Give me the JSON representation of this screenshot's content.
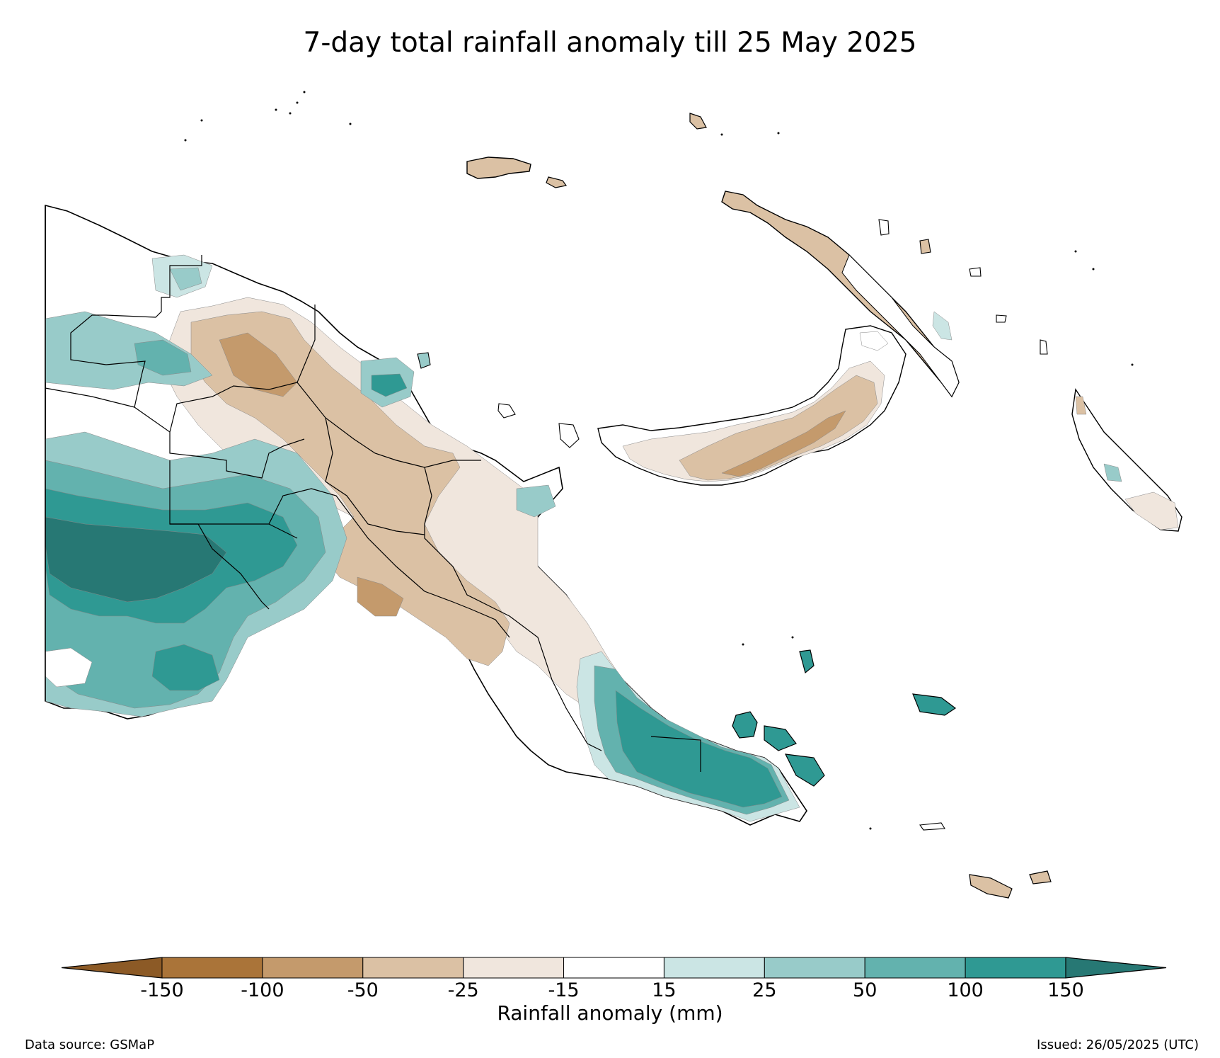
{
  "title": "7-day total rainfall anomaly till 25 May 2025",
  "colorbar": {
    "label": "Rainfall anomaly (mm)",
    "ticks": [
      "-150",
      "-100",
      "-50",
      "-25",
      "-15",
      "15",
      "25",
      "50",
      "100",
      "150"
    ],
    "bins": [
      {
        "range": "<-150",
        "color": "#8c5a26"
      },
      {
        "range": "-150 to -100",
        "color": "#aa7439"
      },
      {
        "range": "-100 to -50",
        "color": "#c49a6c"
      },
      {
        "range": "-50 to -25",
        "color": "#dbc1a4"
      },
      {
        "range": "-25 to -15",
        "color": "#f0e6dd"
      },
      {
        "range": "-15 to 15",
        "color": "#ffffff"
      },
      {
        "range": "15 to 25",
        "color": "#cbe5e4"
      },
      {
        "range": "25 to 50",
        "color": "#98cbc9"
      },
      {
        "range": "50 to 100",
        "color": "#63b2ae"
      },
      {
        "range": "100 to 150",
        "color": "#2f9993"
      },
      {
        "range": ">150",
        "color": "#277874"
      }
    ]
  },
  "footer": {
    "source": "Data source: GSMaP",
    "issued": "Issued: 26/05/2025 (UTC)"
  },
  "map": {
    "region": "Papua New Guinea",
    "regional_anomaly": {
      "western_lowlands": "100 to >150",
      "north_coast_west": "25 to 100",
      "highlands_central": "-50 to -15",
      "papuan_gulf_coast": "-100 to -25",
      "southeast_peninsula": "50 to 150",
      "milne_bay_islands": "100 to 150",
      "new_britain_east": "-150 to -50",
      "new_britain_west": "-25 to -15",
      "new_ireland": "-50 to 25",
      "bougainville": "-25 to 50",
      "manus": "-50 to -25"
    }
  }
}
